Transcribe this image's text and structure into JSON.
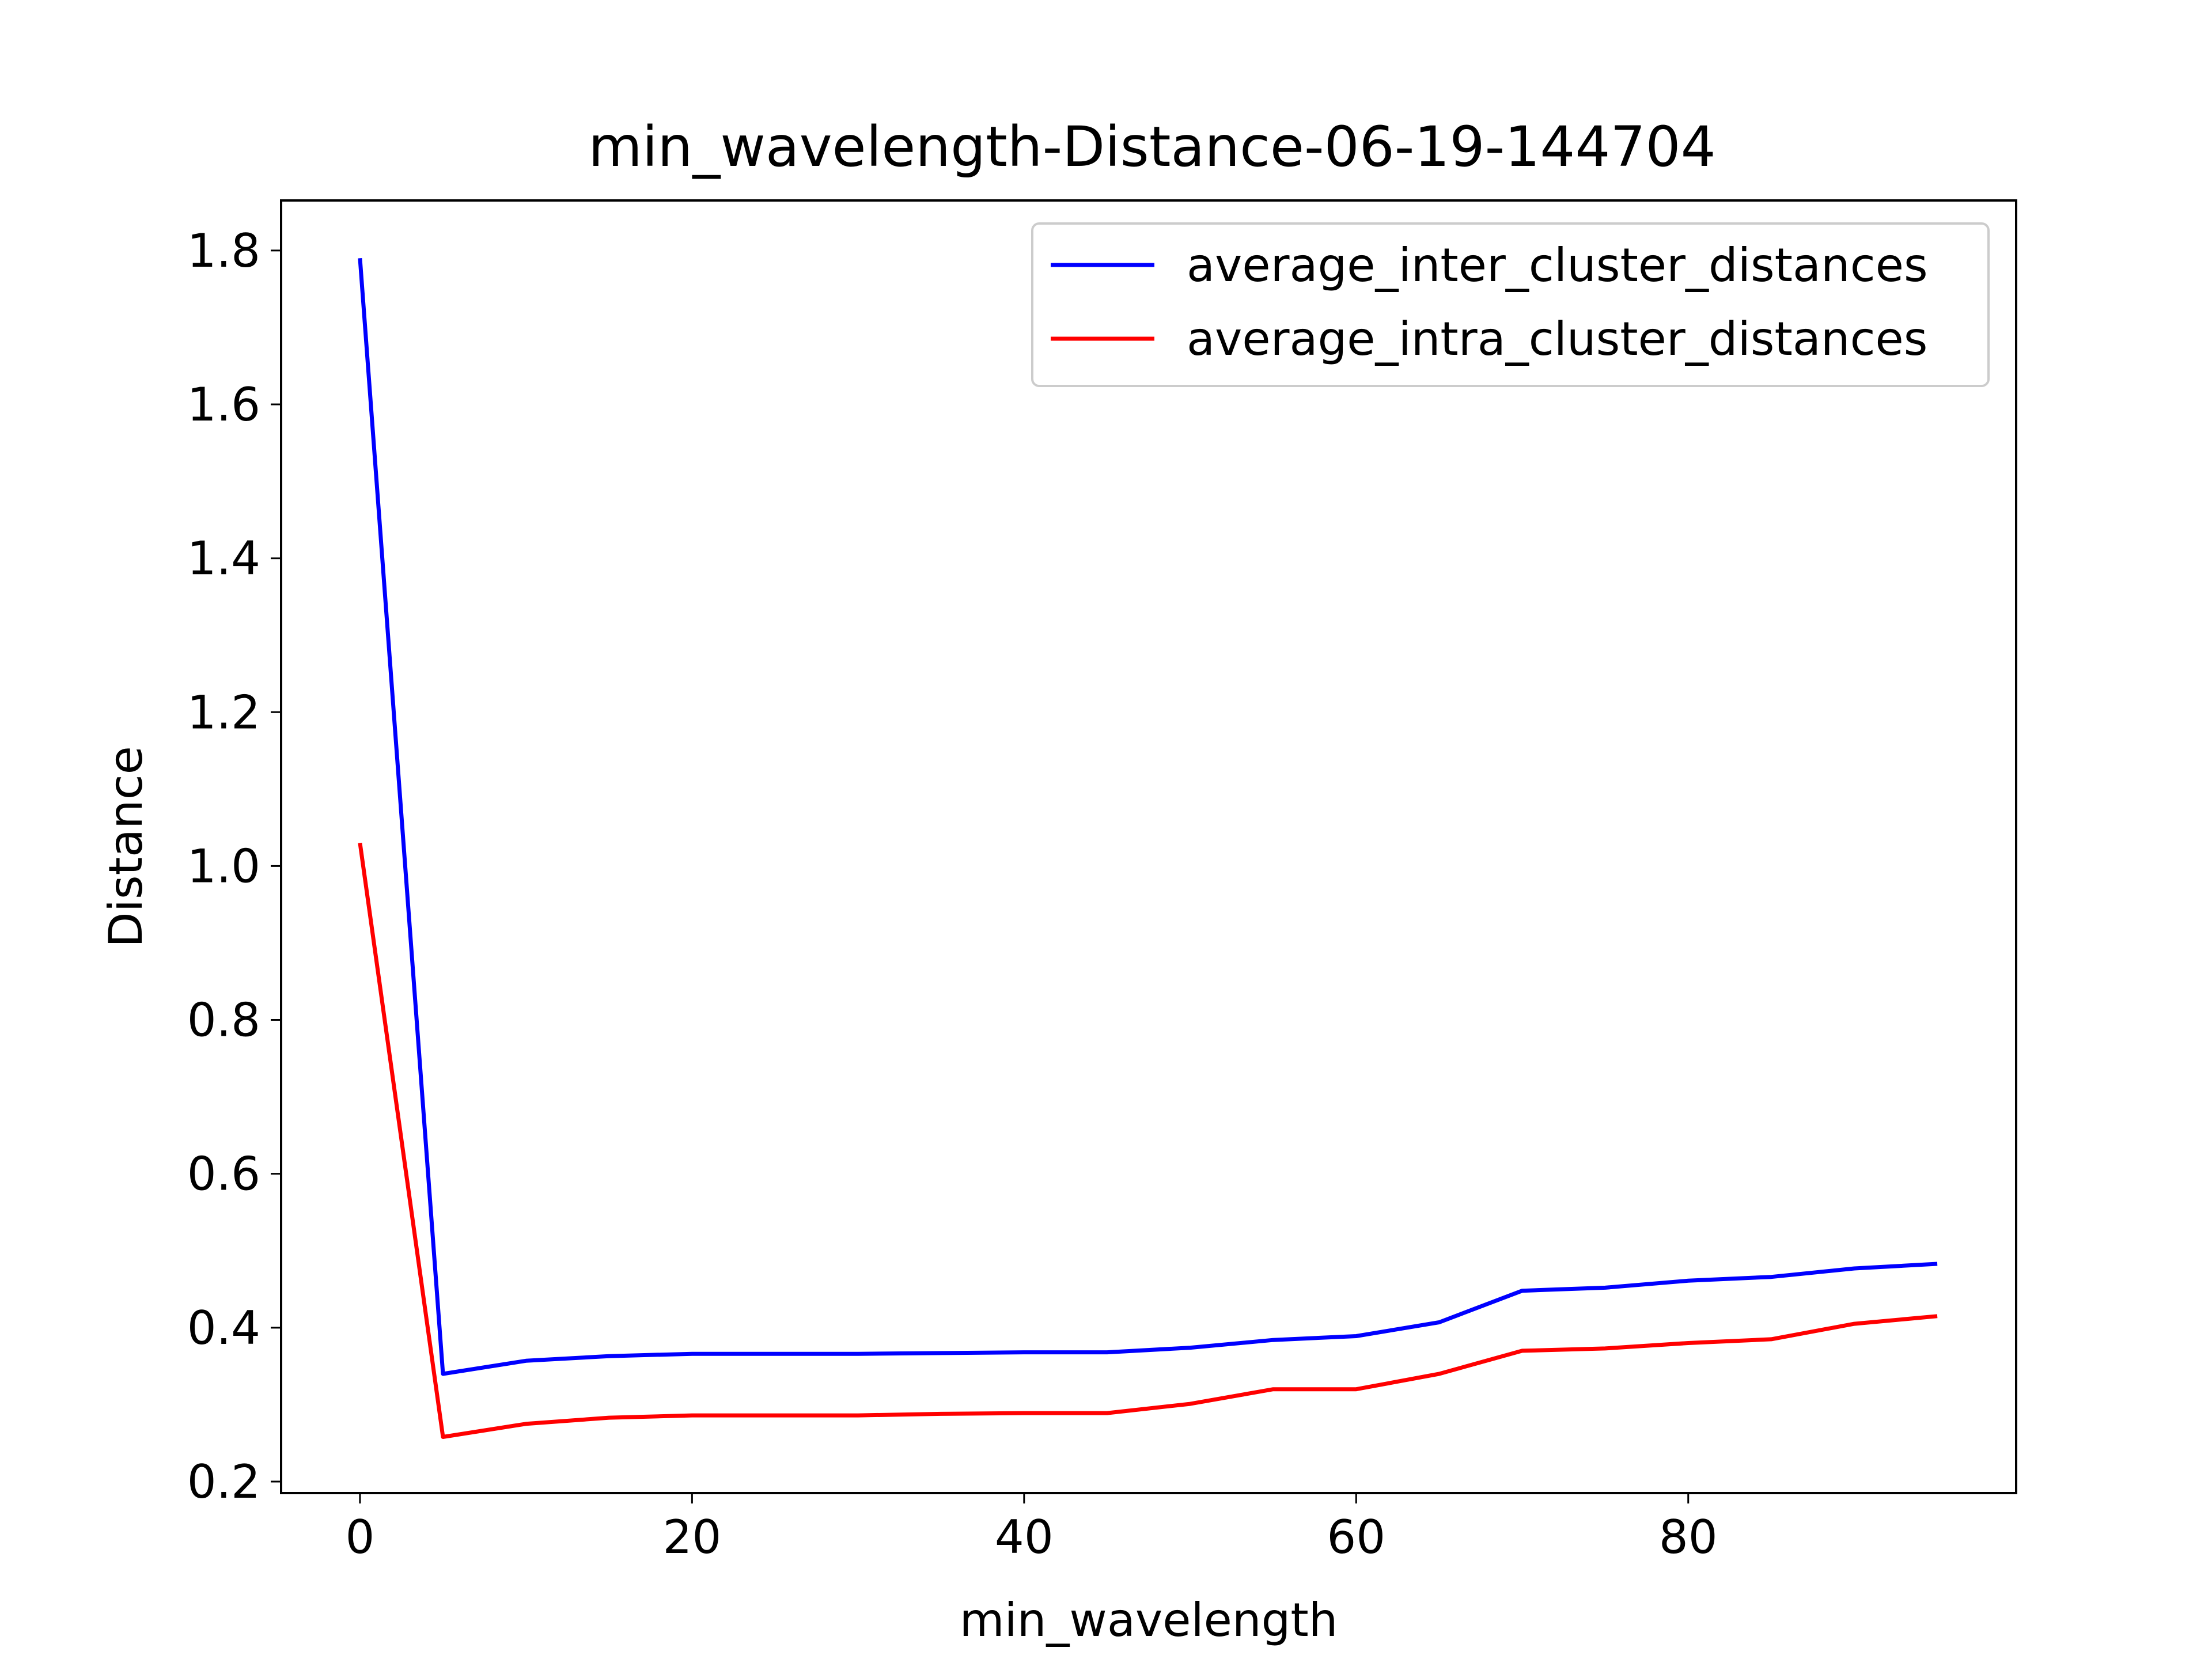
{
  "chart_data": {
    "type": "line",
    "title": "min_wavelength-Distance-06-19-144704",
    "xlabel": "min_wavelength",
    "ylabel": "Distance",
    "xlim": [
      -4.75,
      99.75
    ],
    "ylim": [
      0.185,
      1.865
    ],
    "xticks": [
      0,
      20,
      40,
      60,
      80
    ],
    "yticks": [
      0.2,
      0.4,
      0.6,
      0.8,
      1.0,
      1.2,
      1.4,
      1.6,
      1.8
    ],
    "grid": false,
    "legend_position": "top-right",
    "x": [
      0,
      5,
      10,
      15,
      20,
      25,
      30,
      35,
      40,
      45,
      50,
      55,
      60,
      65,
      70,
      75,
      80,
      85,
      90,
      95
    ],
    "series": [
      {
        "name": "average_inter_cluster_distances",
        "color": "#0000ff",
        "values": [
          1.79,
          0.34,
          0.357,
          0.363,
          0.366,
          0.366,
          0.366,
          0.367,
          0.368,
          0.368,
          0.374,
          0.384,
          0.389,
          0.407,
          0.448,
          0.452,
          0.461,
          0.466,
          0.477,
          0.483
        ]
      },
      {
        "name": "average_intra_cluster_distances",
        "color": "#ff0000",
        "values": [
          1.03,
          0.258,
          0.275,
          0.283,
          0.286,
          0.286,
          0.286,
          0.288,
          0.289,
          0.289,
          0.301,
          0.32,
          0.32,
          0.34,
          0.37,
          0.373,
          0.38,
          0.385,
          0.405,
          0.415
        ]
      }
    ]
  }
}
